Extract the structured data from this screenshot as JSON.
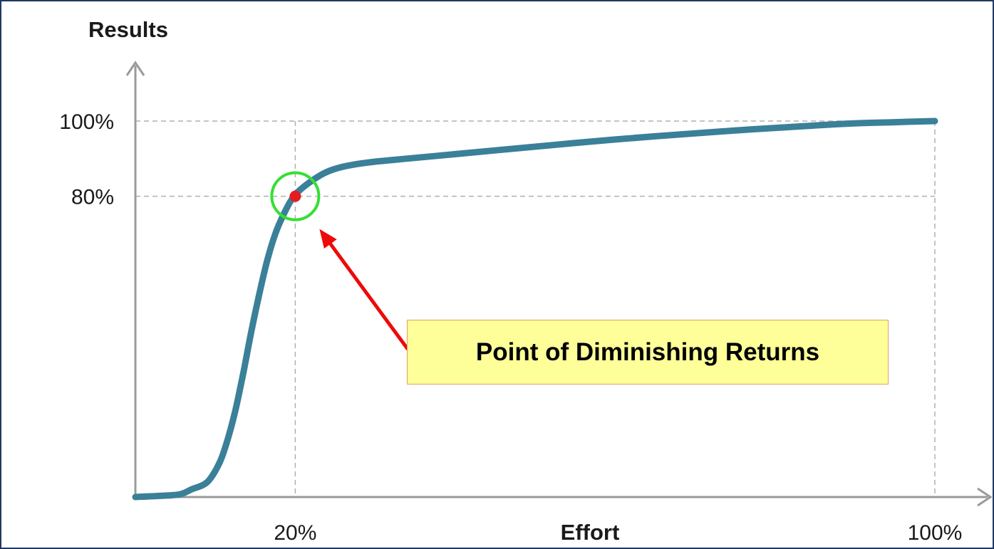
{
  "chart_data": {
    "type": "line",
    "xlabel": "Effort",
    "ylabel": "Results",
    "xlim": [
      0,
      100
    ],
    "ylim": [
      0,
      100
    ],
    "x_ticks": [
      {
        "value": 20,
        "label": "20%"
      },
      {
        "value": 100,
        "label": "100%"
      }
    ],
    "y_ticks": [
      {
        "value": 80,
        "label": "80%"
      },
      {
        "value": 100,
        "label": "100%"
      }
    ],
    "grid": "dashed reference lines at x=20, x=100, y=80, y=100",
    "series": [
      {
        "color": "#3a8098",
        "x": [
          0,
          3,
          5.5,
          7,
          9,
          10.5,
          11.5,
          12.5,
          13.5,
          14.5,
          15.5,
          16.5,
          17.5,
          18.5,
          19.5,
          20.5,
          22,
          23.5,
          25,
          27,
          30,
          35,
          45,
          60,
          75,
          88,
          95,
          100
        ],
        "y": [
          0,
          0.3,
          0.7,
          2,
          4,
          9,
          15,
          23,
          33,
          44,
          54,
          63,
          70,
          75,
          79,
          81.5,
          84,
          86,
          87.3,
          88.3,
          89.2,
          90.2,
          92.2,
          95.1,
          97.5,
          99.2,
          99.7,
          100
        ]
      }
    ],
    "highlight": {
      "x": 20,
      "y": 80,
      "point_color": "#e21d22",
      "ring_color": "#33e033"
    },
    "annotation": {
      "text": "Point of Diminishing Returns",
      "arrow_color": "#ee0a0a",
      "box_fill": "#ffff99",
      "box_border": "#e0a060"
    },
    "frame_color": "#1f3864",
    "axis_color": "#9a9a9a",
    "gridline_color": "#b0b0b0"
  }
}
